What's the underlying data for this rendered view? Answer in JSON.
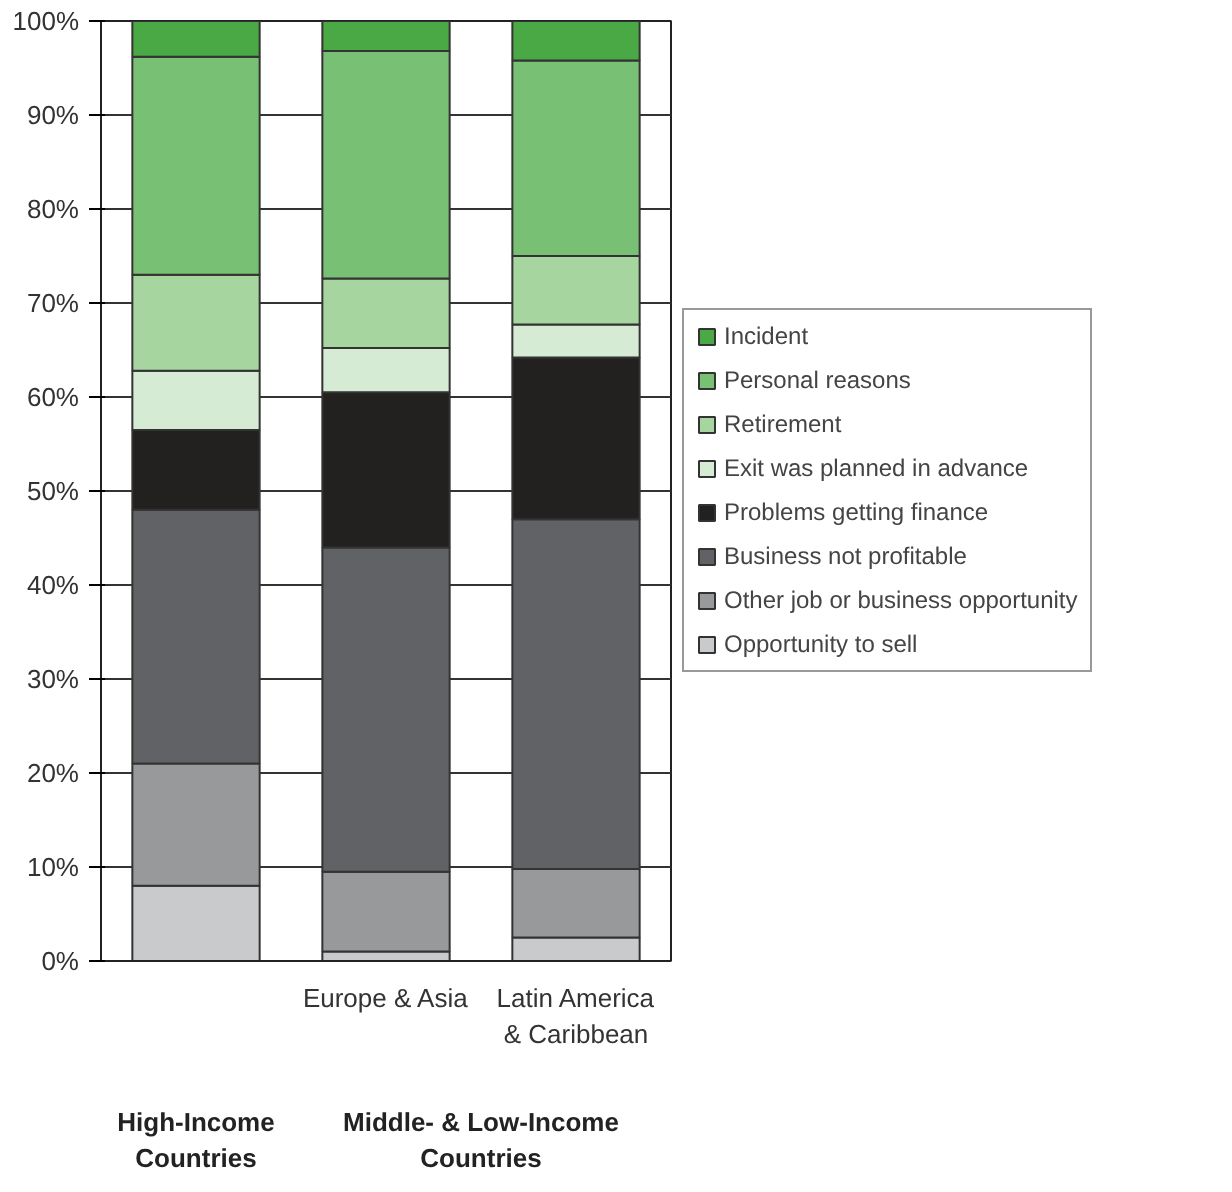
{
  "chart_data": {
    "type": "bar",
    "stacked": true,
    "categories": [
      null,
      "Europe & Asia",
      "Latin America & Caribbean"
    ],
    "series": [
      {
        "name": "Opportunity to sell",
        "color": "#c9cacc",
        "values": [
          8,
          1,
          2.5
        ]
      },
      {
        "name": "Other job or business opportunity",
        "color": "#98999b",
        "values": [
          13,
          8.5,
          7.3
        ]
      },
      {
        "name": "Business not profitable",
        "color": "#616265",
        "values": [
          27,
          34.5,
          37.2
        ]
      },
      {
        "name": "Problems getting finance",
        "color": "#222120",
        "values": [
          8.5,
          16.5,
          17.2
        ]
      },
      {
        "name": "Exit was planned in advance",
        "color": "#d5ebd3",
        "values": [
          6.3,
          4.7,
          3.5
        ]
      },
      {
        "name": "Retirement",
        "color": "#a6d5a0",
        "values": [
          10.2,
          7.4,
          7.3
        ]
      },
      {
        "name": "Personal reasons",
        "color": "#78c073",
        "values": [
          23.2,
          24.2,
          20.8
        ]
      },
      {
        "name": "Incident",
        "color": "#4aa944",
        "values": [
          3.8,
          3.2,
          4.2
        ]
      }
    ],
    "ylim": [
      0,
      100
    ],
    "yticks": [
      {
        "value": 0,
        "label": "0%"
      },
      {
        "value": 10,
        "label": "10%"
      },
      {
        "value": 20,
        "label": "20%"
      },
      {
        "value": 30,
        "label": "30%"
      },
      {
        "value": 40,
        "label": "40%"
      },
      {
        "value": 50,
        "label": "50%"
      },
      {
        "value": 60,
        "label": "60%"
      },
      {
        "value": 70,
        "label": "70%"
      },
      {
        "value": 80,
        "label": "80%"
      },
      {
        "value": 90,
        "label": "90%"
      },
      {
        "value": 100,
        "label": "100%"
      }
    ],
    "grid": "y",
    "legend": "right",
    "annotations": [
      "High-Income Countries",
      "Middle- & Low-Income Countries"
    ]
  }
}
